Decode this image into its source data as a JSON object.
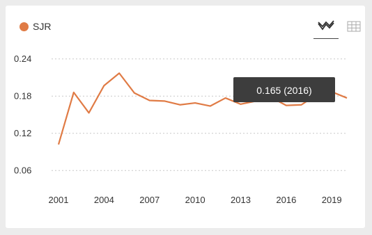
{
  "legend": {
    "label": "SJR",
    "color": "#e07b45"
  },
  "toolbar": {
    "line_view_icon": "chart-line-icon",
    "table_view_icon": "table-grid-icon"
  },
  "tooltip": {
    "text": "0.165 (2016)"
  },
  "chart_data": {
    "type": "line",
    "title": "",
    "xlabel": "",
    "ylabel": "",
    "ylim": [
      0.03,
      0.27
    ],
    "yticks": [
      "0.24",
      "0.18",
      "0.12",
      "0.06"
    ],
    "xticks": [
      "2001",
      "2004",
      "2007",
      "2010",
      "2013",
      "2016",
      "2019"
    ],
    "grid": true,
    "legend_position": "top-left",
    "series": [
      {
        "name": "SJR",
        "color": "#e07b45",
        "x": [
          2001,
          2002,
          2003,
          2004,
          2005,
          2006,
          2007,
          2008,
          2009,
          2010,
          2011,
          2012,
          2013,
          2014,
          2015,
          2016,
          2017,
          2018,
          2019,
          2020
        ],
        "values": [
          0.102,
          0.186,
          0.153,
          0.197,
          0.217,
          0.185,
          0.173,
          0.172,
          0.166,
          0.169,
          0.164,
          0.177,
          0.167,
          0.172,
          0.178,
          0.165,
          0.166,
          0.182,
          0.187,
          0.177
        ]
      }
    ]
  }
}
